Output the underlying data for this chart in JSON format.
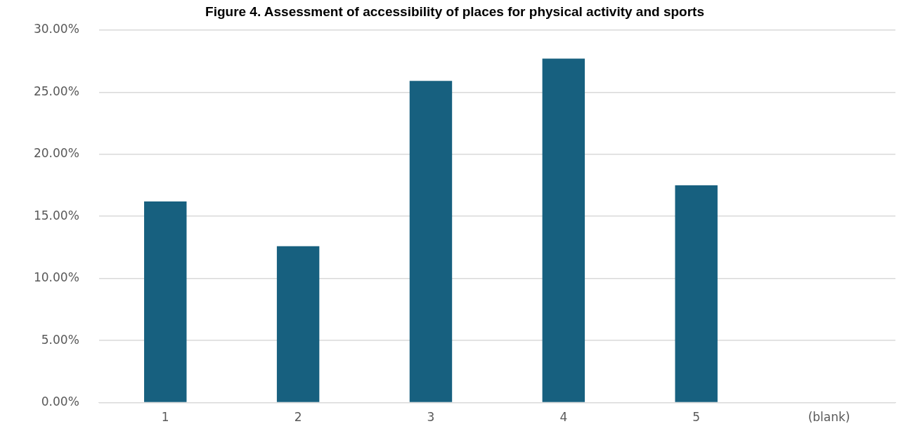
{
  "chart_data": {
    "type": "bar",
    "title": "Figure 4. Assessment of accessibility of places for physical activity and sports",
    "categories": [
      "1",
      "2",
      "3",
      "4",
      "5",
      "(blank)"
    ],
    "values": [
      16.2,
      12.6,
      25.9,
      27.7,
      17.5,
      null
    ],
    "color": "#17607f",
    "ylim": [
      0,
      30
    ],
    "yticks": [
      {
        "value": 0,
        "label": "0.00%"
      },
      {
        "value": 5,
        "label": "5.00%"
      },
      {
        "value": 10,
        "label": "10.00%"
      },
      {
        "value": 15,
        "label": "15.00%"
      },
      {
        "value": 20,
        "label": "20.00%"
      },
      {
        "value": 25,
        "label": "25.00%"
      },
      {
        "value": 30,
        "label": "30.00%"
      }
    ],
    "grid": "y",
    "legend": false
  }
}
